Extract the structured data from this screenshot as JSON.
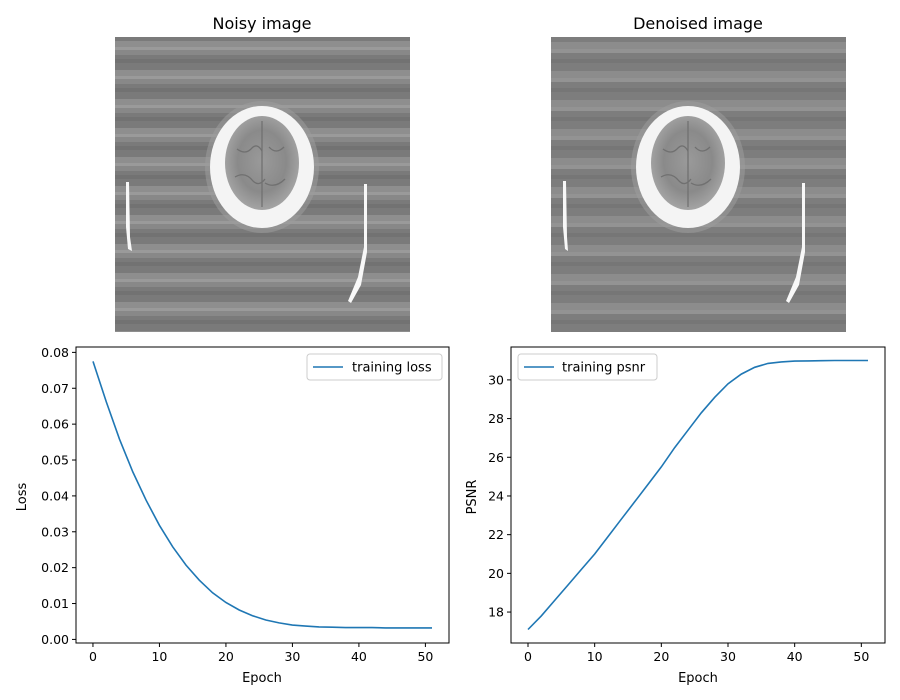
{
  "panels": {
    "noisy": {
      "title": "Noisy image"
    },
    "denoised": {
      "title": "Denoised image"
    }
  },
  "chart_data": [
    {
      "type": "line",
      "title": "",
      "xlabel": "Epoch",
      "ylabel": "Loss",
      "xlim": [
        -2.55,
        53.55
      ],
      "ylim": [
        -0.001,
        0.0815
      ],
      "xticks": [
        0,
        10,
        20,
        30,
        40,
        50
      ],
      "yticks": [
        0.0,
        0.01,
        0.02,
        0.03,
        0.04,
        0.05,
        0.06,
        0.07,
        0.08
      ],
      "ytick_labels": [
        "0.00",
        "0.01",
        "0.02",
        "0.03",
        "0.04",
        "0.05",
        "0.06",
        "0.07",
        "0.08"
      ],
      "legend": "top-right",
      "grid": false,
      "series": [
        {
          "name": "training loss",
          "color": "#1f77b4",
          "x": [
            0,
            2,
            4,
            6,
            8,
            10,
            12,
            14,
            16,
            18,
            20,
            22,
            24,
            26,
            28,
            30,
            32,
            34,
            36,
            38,
            40,
            42,
            44,
            46,
            48,
            51
          ],
          "y": [
            0.0775,
            0.0662,
            0.0558,
            0.0467,
            0.0388,
            0.0318,
            0.0258,
            0.0207,
            0.0165,
            0.013,
            0.0103,
            0.0082,
            0.0066,
            0.0054,
            0.0046,
            0.004,
            0.0037,
            0.0035,
            0.0034,
            0.0033,
            0.0033,
            0.0033,
            0.0032,
            0.0032,
            0.0032,
            0.0032
          ]
        }
      ]
    },
    {
      "type": "line",
      "title": "",
      "xlabel": "Epoch",
      "ylabel": "PSNR",
      "xlim": [
        -2.55,
        53.55
      ],
      "ylim": [
        16.4,
        31.7
      ],
      "xticks": [
        0,
        10,
        20,
        30,
        40,
        50
      ],
      "yticks": [
        18,
        20,
        22,
        24,
        26,
        28,
        30
      ],
      "ytick_labels": [
        "18",
        "20",
        "22",
        "24",
        "26",
        "28",
        "30"
      ],
      "legend": "top-left",
      "grid": false,
      "series": [
        {
          "name": "training psnr",
          "color": "#1f77b4",
          "x": [
            0,
            2,
            4,
            6,
            8,
            10,
            12,
            14,
            16,
            18,
            20,
            22,
            24,
            26,
            28,
            30,
            32,
            34,
            36,
            38,
            40,
            42,
            44,
            46,
            48,
            51
          ],
          "y": [
            17.1,
            17.8,
            18.6,
            19.4,
            20.2,
            21.0,
            21.9,
            22.8,
            23.7,
            24.6,
            25.5,
            26.5,
            27.4,
            28.3,
            29.1,
            29.8,
            30.3,
            30.65,
            30.85,
            30.93,
            30.97,
            30.98,
            30.99,
            31.0,
            31.0,
            31.0
          ]
        }
      ]
    }
  ]
}
